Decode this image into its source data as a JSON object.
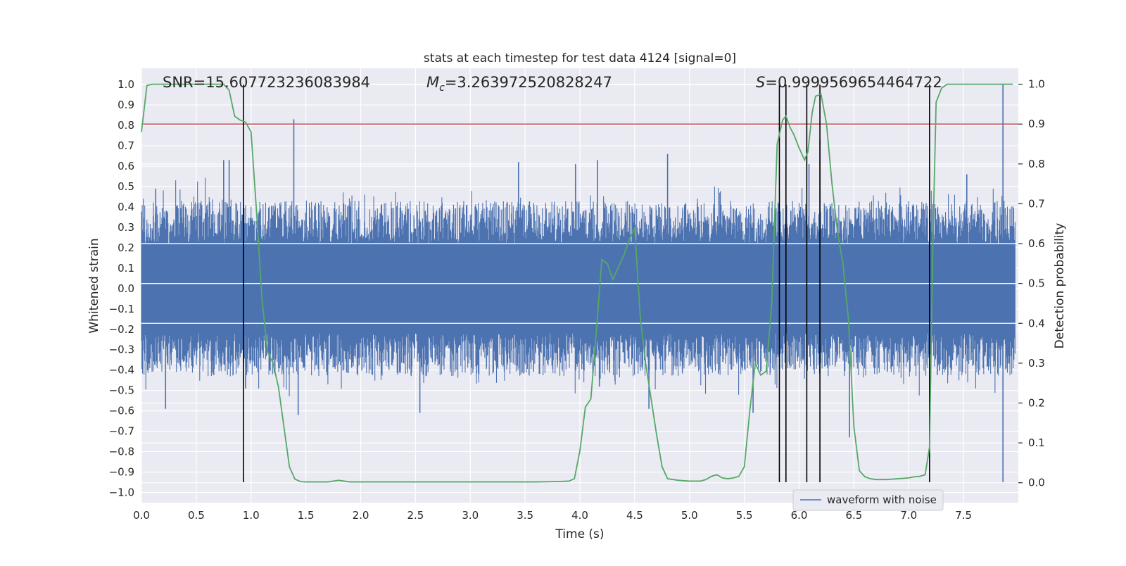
{
  "chart_data": {
    "type": "line",
    "title": "stats at each timestep for test data 4124 [signal=0]",
    "xlabel": "Time (s)",
    "ylabel": "Whitened strain",
    "y2label": "Detection probability",
    "xlim": [
      0.0,
      8.0
    ],
    "ylim": [
      -1.05,
      1.08
    ],
    "y2lim": [
      -0.05,
      1.04
    ],
    "x_ticks": [
      "0.0",
      "0.5",
      "1.0",
      "1.5",
      "2.0",
      "2.5",
      "3.0",
      "3.5",
      "4.0",
      "4.5",
      "5.0",
      "5.5",
      "6.0",
      "6.5",
      "7.0",
      "7.5"
    ],
    "x_tick_values": [
      0.0,
      0.5,
      1.0,
      1.5,
      2.0,
      2.5,
      3.0,
      3.5,
      4.0,
      4.5,
      5.0,
      5.5,
      6.0,
      6.5,
      7.0,
      7.5
    ],
    "y_ticks": [
      "1.0",
      "0.9",
      "0.8",
      "0.7",
      "0.6",
      "0.5",
      "0.4",
      "0.3",
      "0.2",
      "0.1",
      "0.0",
      "−0.1",
      "−0.2",
      "−0.3",
      "−0.4",
      "−0.5",
      "−0.6",
      "−0.7",
      "−0.8",
      "−0.9",
      "−1.0"
    ],
    "y_tick_values": [
      1.0,
      0.9,
      0.8,
      0.7,
      0.6,
      0.5,
      0.4,
      0.3,
      0.2,
      0.1,
      0.0,
      -0.1,
      -0.2,
      -0.3,
      -0.4,
      -0.5,
      -0.6,
      -0.7,
      -0.8,
      -0.9,
      -1.0
    ],
    "y2_ticks": [
      "1.0",
      "0.9",
      "0.8",
      "0.7",
      "0.6",
      "0.5",
      "0.4",
      "0.3",
      "0.2",
      "0.1",
      "0.0"
    ],
    "y2_tick_values": [
      1.0,
      0.9,
      0.8,
      0.7,
      0.6,
      0.5,
      0.4,
      0.3,
      0.2,
      0.1,
      0.0
    ],
    "annotations": {
      "snr": "SNR=15.607723236083984",
      "mc_symbol": "M",
      "mc_sub": "c",
      "mc_value": "=3.263972520828247",
      "s_symbol": "S",
      "s_value": "=0.9999569654464722"
    },
    "legend": {
      "label": "waveform with noise",
      "placement": "lower-right"
    },
    "grid": true,
    "threshold": {
      "axis": "y2",
      "value": 0.9,
      "color": "#c44e52"
    },
    "vertical_markers": {
      "x": [
        0.93,
        5.82,
        5.88,
        6.07,
        6.19,
        7.19
      ],
      "y_range": [
        -0.95,
        1.0
      ],
      "color": "#000000"
    },
    "series": [
      {
        "name": "waveform with noise",
        "axis": "y",
        "color": "#4c72b0",
        "kind": "noise-envelope",
        "envelope": {
          "core": 0.22,
          "typical": 0.42,
          "spike_peaks": [
            [
              0.13,
              0.49
            ],
            [
              0.22,
              -0.59
            ],
            [
              0.75,
              0.63
            ],
            [
              0.8,
              0.63
            ],
            [
              0.95,
              -0.49
            ],
            [
              1.39,
              0.83
            ],
            [
              1.43,
              -0.62
            ],
            [
              2.54,
              -0.61
            ],
            [
              3.44,
              0.62
            ],
            [
              3.96,
              0.61
            ],
            [
              4.16,
              0.63
            ],
            [
              4.63,
              -0.59
            ],
            [
              4.8,
              0.66
            ],
            [
              5.58,
              -0.61
            ],
            [
              6.09,
              0.61
            ],
            [
              6.19,
              0.73
            ],
            [
              6.46,
              -0.73
            ],
            [
              7.53,
              0.56
            ],
            [
              7.86,
              1.0
            ],
            [
              7.86,
              -0.95
            ]
          ]
        }
      },
      {
        "name": "detection probability",
        "axis": "y2",
        "color": "#55a868",
        "x": [
          0.0,
          0.05,
          0.1,
          0.2,
          0.3,
          0.4,
          0.5,
          0.6,
          0.7,
          0.75,
          0.8,
          0.85,
          0.9,
          0.95,
          1.0,
          1.05,
          1.1,
          1.15,
          1.2,
          1.25,
          1.3,
          1.35,
          1.4,
          1.45,
          1.5,
          1.6,
          1.7,
          1.8,
          1.9,
          2.0,
          2.1,
          2.2,
          2.4,
          2.6,
          2.8,
          3.0,
          3.2,
          3.4,
          3.6,
          3.8,
          3.9,
          3.95,
          4.0,
          4.05,
          4.1,
          4.15,
          4.2,
          4.25,
          4.3,
          4.35,
          4.4,
          4.45,
          4.5,
          4.55,
          4.6,
          4.65,
          4.7,
          4.75,
          4.8,
          4.9,
          5.0,
          5.1,
          5.15,
          5.2,
          5.25,
          5.3,
          5.35,
          5.4,
          5.45,
          5.5,
          5.55,
          5.6,
          5.65,
          5.7,
          5.75,
          5.8,
          5.85,
          5.88,
          5.92,
          5.95,
          6.0,
          6.05,
          6.08,
          6.12,
          6.15,
          6.2,
          6.25,
          6.3,
          6.35,
          6.4,
          6.45,
          6.5,
          6.55,
          6.6,
          6.65,
          6.7,
          6.8,
          6.9,
          7.0,
          7.05,
          7.1,
          7.15,
          7.19,
          7.22,
          7.25,
          7.3,
          7.35,
          7.4,
          7.5,
          7.6,
          7.7,
          7.8,
          7.95
        ],
        "values": [
          0.88,
          0.997,
          1.0,
          1.0,
          1.0,
          1.0,
          1.0,
          1.0,
          1.0,
          1.0,
          0.985,
          0.92,
          0.91,
          0.905,
          0.88,
          0.68,
          0.46,
          0.33,
          0.3,
          0.24,
          0.14,
          0.04,
          0.009,
          0.003,
          0.002,
          0.002,
          0.002,
          0.006,
          0.002,
          0.002,
          0.002,
          0.002,
          0.002,
          0.002,
          0.002,
          0.002,
          0.002,
          0.002,
          0.002,
          0.003,
          0.004,
          0.01,
          0.08,
          0.19,
          0.21,
          0.38,
          0.56,
          0.55,
          0.51,
          0.54,
          0.57,
          0.61,
          0.64,
          0.42,
          0.3,
          0.21,
          0.12,
          0.04,
          0.01,
          0.006,
          0.004,
          0.004,
          0.008,
          0.016,
          0.02,
          0.012,
          0.01,
          0.012,
          0.016,
          0.04,
          0.18,
          0.3,
          0.27,
          0.28,
          0.45,
          0.85,
          0.91,
          0.92,
          0.89,
          0.875,
          0.84,
          0.81,
          0.83,
          0.93,
          0.97,
          0.975,
          0.9,
          0.75,
          0.63,
          0.55,
          0.41,
          0.14,
          0.03,
          0.015,
          0.01,
          0.008,
          0.008,
          0.01,
          0.012,
          0.015,
          0.016,
          0.02,
          0.09,
          0.6,
          0.955,
          0.99,
          1.0,
          1.0,
          1.0,
          1.0,
          1.0,
          1.0,
          1.0
        ]
      }
    ]
  }
}
